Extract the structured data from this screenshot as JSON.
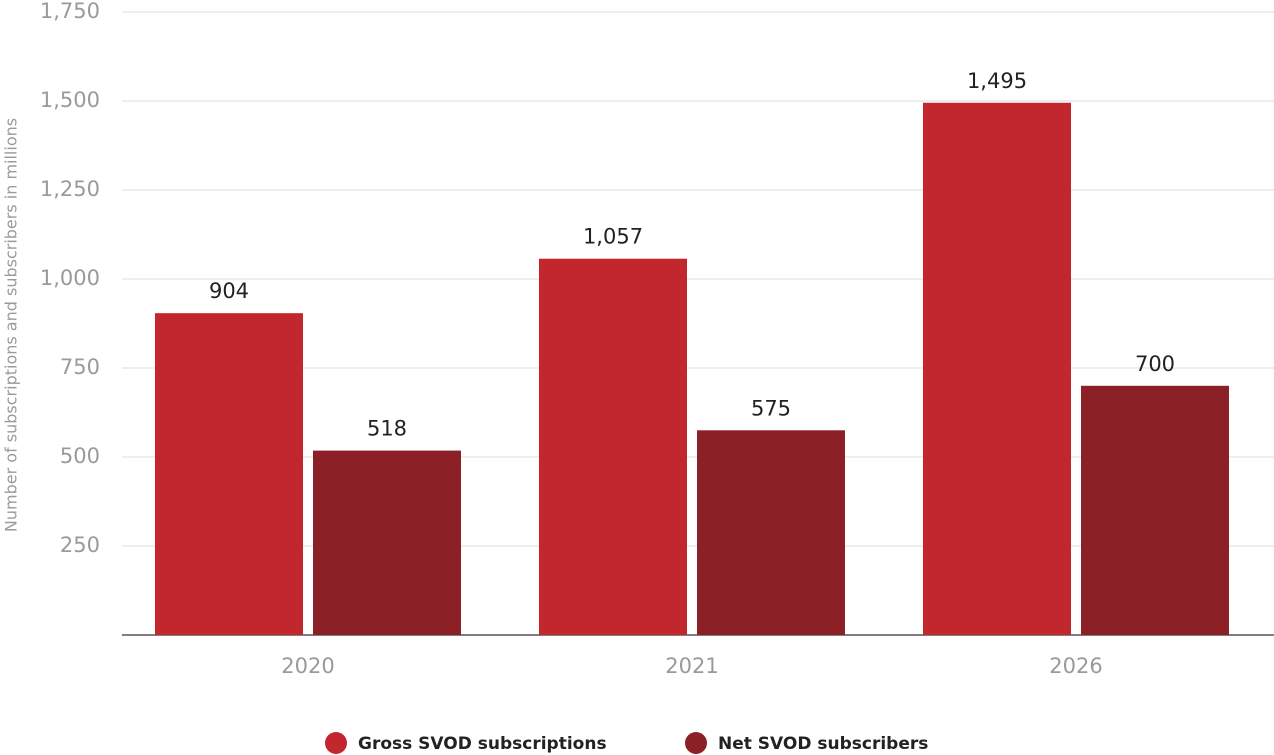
{
  "chart_data": {
    "type": "bar",
    "y_label": "Number of subscriptions and subscribers in millions",
    "categories": [
      "2020",
      "2021",
      "2026"
    ],
    "series": [
      {
        "name": "Gross SVOD subscriptions",
        "color": "#c1272d",
        "values": [
          904,
          1057,
          1495
        ],
        "value_labels": [
          "904",
          "1,057",
          "1,495"
        ]
      },
      {
        "name": "Net SVOD subscribers",
        "color": "#8b2026",
        "values": [
          518,
          575,
          700
        ],
        "value_labels": [
          "518",
          "575",
          "700"
        ]
      }
    ],
    "ylim": [
      0,
      1750
    ],
    "yticks": [
      {
        "value": 250,
        "label": "250"
      },
      {
        "value": 500,
        "label": "500"
      },
      {
        "value": 750,
        "label": "750"
      },
      {
        "value": 1000,
        "label": "1,000"
      },
      {
        "value": 1250,
        "label": "1,250"
      },
      {
        "value": 1500,
        "label": "1,500"
      },
      {
        "value": 1750,
        "label": "1,750"
      }
    ],
    "grid": true
  }
}
